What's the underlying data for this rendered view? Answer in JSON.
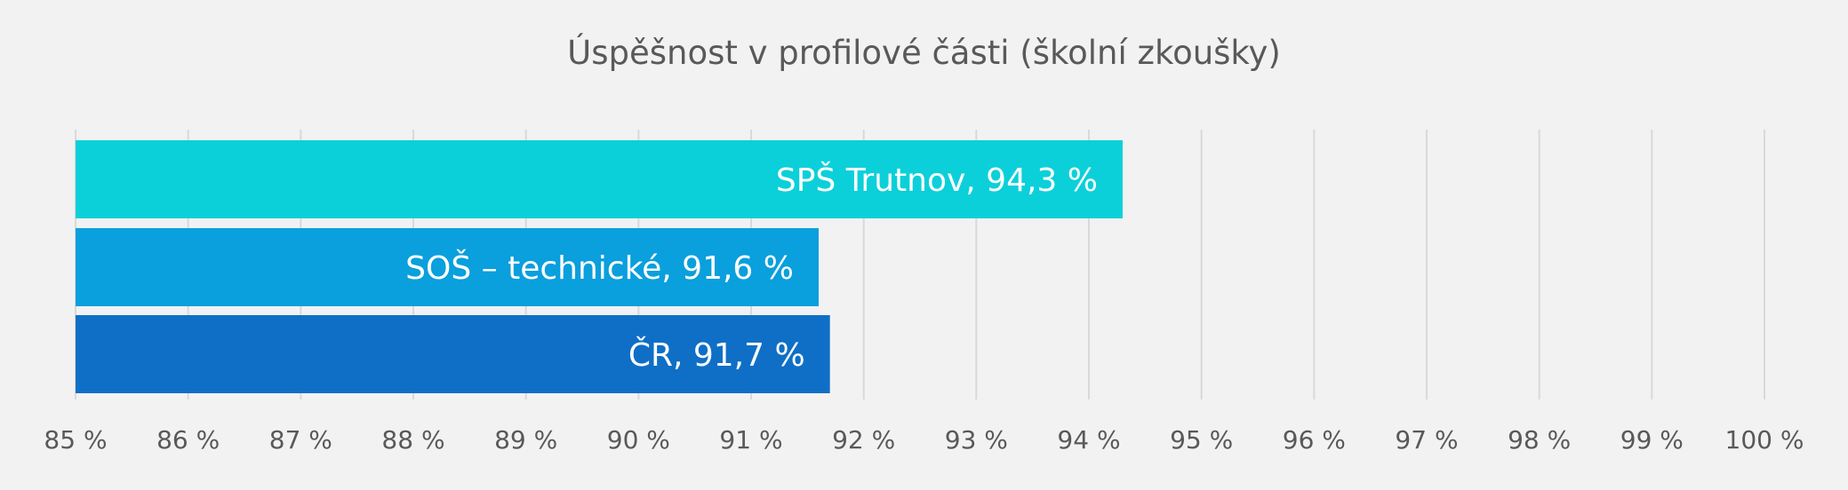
{
  "chart_data": {
    "type": "bar",
    "orientation": "horizontal",
    "title": "Úspěšnost v profilové části (školní zkoušky)",
    "xlabel": "",
    "ylabel": "",
    "xlim": [
      85,
      100
    ],
    "grid": true,
    "legend": "none",
    "ticks": [
      "85 %",
      "86 %",
      "87 %",
      "88 %",
      "89 %",
      "90 %",
      "91 %",
      "92 %",
      "93 %",
      "94 %",
      "95 %",
      "96 %",
      "97 %",
      "98 %",
      "99 %",
      "100 %"
    ],
    "bars": [
      {
        "value": 94.3,
        "label": "SPŠ Trutnov, 94,3 %",
        "color": "#0bd0d9"
      },
      {
        "value": 91.6,
        "label": "SOŠ – technické, 91,6 %",
        "color": "#0a9fdd"
      },
      {
        "value": 91.7,
        "label": "ČR, 91,7 %",
        "color": "#0f6fc6"
      }
    ]
  }
}
